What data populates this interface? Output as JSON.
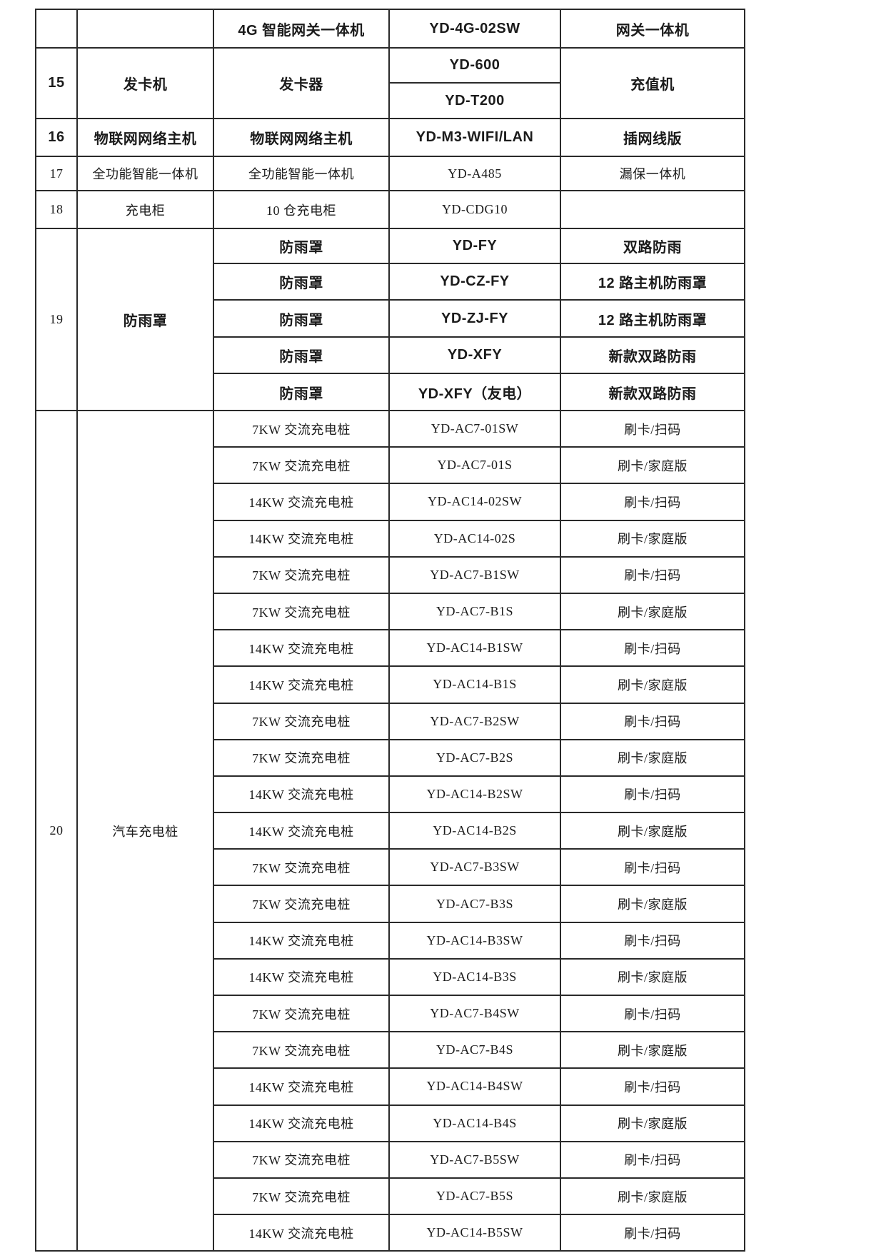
{
  "page": {
    "background_color": "#ffffff",
    "line_color": "#2a2a2a",
    "text_color": "#1b1b1b"
  },
  "table": {
    "sections": [
      {
        "serial": "",
        "category": "",
        "style": "bold",
        "rows": [
          {
            "product": "4G 智能网关一体机",
            "model": "YD-4G-02SW",
            "note": "网关一体机"
          }
        ]
      },
      {
        "serial": "15",
        "category": "发卡机",
        "style": "bold",
        "product": "发卡器",
        "note": "充值机",
        "rows": [
          {
            "model": "YD-600"
          },
          {
            "model": "YD-T200"
          }
        ]
      },
      {
        "serial": "16",
        "category": "物联网网络主机",
        "style": "bold",
        "rows": [
          {
            "product": "物联网网络主机",
            "model": "YD-M3-WIFI/LAN",
            "note": "插网线版"
          }
        ]
      },
      {
        "serial": "17",
        "category": "全功能智能一体机",
        "style": "regular",
        "rows": [
          {
            "product": "全功能智能一体机",
            "model": "YD-A485",
            "note": "漏保一体机"
          }
        ]
      },
      {
        "serial": "18",
        "category": "充电柜",
        "style": "regular",
        "rows": [
          {
            "product": "10 仓充电柜",
            "model": "YD-CDG10",
            "note": ""
          }
        ]
      },
      {
        "serial": "19",
        "category": "防雨罩",
        "style": "bold",
        "serial_style": "regular",
        "rows": [
          {
            "product": "防雨罩",
            "model": "YD-FY",
            "note": "双路防雨"
          },
          {
            "product": "防雨罩",
            "model": "YD-CZ-FY",
            "note": "12 路主机防雨罩"
          },
          {
            "product": "防雨罩",
            "model": "YD-ZJ-FY",
            "note": "12 路主机防雨罩"
          },
          {
            "product": "防雨罩",
            "model": "YD-XFY",
            "note": "新款双路防雨"
          },
          {
            "product": "防雨罩",
            "model": "YD-XFY（友电）",
            "note": "新款双路防雨"
          }
        ]
      },
      {
        "serial": "20",
        "category": "汽车充电桩",
        "style": "regular",
        "rows": [
          {
            "product": "7KW 交流充电桩",
            "model": "YD-AC7-01SW",
            "note": "刷卡/扫码"
          },
          {
            "product": "7KW 交流充电桩",
            "model": "YD-AC7-01S",
            "note": "刷卡/家庭版"
          },
          {
            "product": "14KW 交流充电桩",
            "model": "YD-AC14-02SW",
            "note": "刷卡/扫码"
          },
          {
            "product": "14KW 交流充电桩",
            "model": "YD-AC14-02S",
            "note": "刷卡/家庭版"
          },
          {
            "product": "7KW 交流充电桩",
            "model": "YD-AC7-B1SW",
            "note": "刷卡/扫码"
          },
          {
            "product": "7KW 交流充电桩",
            "model": "YD-AC7-B1S",
            "note": "刷卡/家庭版"
          },
          {
            "product": "14KW 交流充电桩",
            "model": "YD-AC14-B1SW",
            "note": "刷卡/扫码"
          },
          {
            "product": "14KW 交流充电桩",
            "model": "YD-AC14-B1S",
            "note": "刷卡/家庭版"
          },
          {
            "product": "7KW 交流充电桩",
            "model": "YD-AC7-B2SW",
            "note": "刷卡/扫码"
          },
          {
            "product": "7KW 交流充电桩",
            "model": "YD-AC7-B2S",
            "note": "刷卡/家庭版"
          },
          {
            "product": "14KW 交流充电桩",
            "model": "YD-AC14-B2SW",
            "note": "刷卡/扫码"
          },
          {
            "product": "14KW 交流充电桩",
            "model": "YD-AC14-B2S",
            "note": "刷卡/家庭版"
          },
          {
            "product": "7KW 交流充电桩",
            "model": "YD-AC7-B3SW",
            "note": "刷卡/扫码"
          },
          {
            "product": "7KW 交流充电桩",
            "model": "YD-AC7-B3S",
            "note": "刷卡/家庭版"
          },
          {
            "product": "14KW 交流充电桩",
            "model": "YD-AC14-B3SW",
            "note": "刷卡/扫码"
          },
          {
            "product": "14KW 交流充电桩",
            "model": "YD-AC14-B3S",
            "note": "刷卡/家庭版"
          },
          {
            "product": "7KW 交流充电桩",
            "model": "YD-AC7-B4SW",
            "note": "刷卡/扫码"
          },
          {
            "product": "7KW 交流充电桩",
            "model": "YD-AC7-B4S",
            "note": "刷卡/家庭版"
          },
          {
            "product": "14KW 交流充电桩",
            "model": "YD-AC14-B4SW",
            "note": "刷卡/扫码"
          },
          {
            "product": "14KW 交流充电桩",
            "model": "YD-AC14-B4S",
            "note": "刷卡/家庭版"
          },
          {
            "product": "7KW 交流充电桩",
            "model": "YD-AC7-B5SW",
            "note": "刷卡/扫码"
          },
          {
            "product": "7KW 交流充电桩",
            "model": "YD-AC7-B5S",
            "note": "刷卡/家庭版"
          },
          {
            "product": "14KW 交流充电桩",
            "model": "YD-AC14-B5SW",
            "note": "刷卡/扫码"
          }
        ]
      }
    ]
  }
}
